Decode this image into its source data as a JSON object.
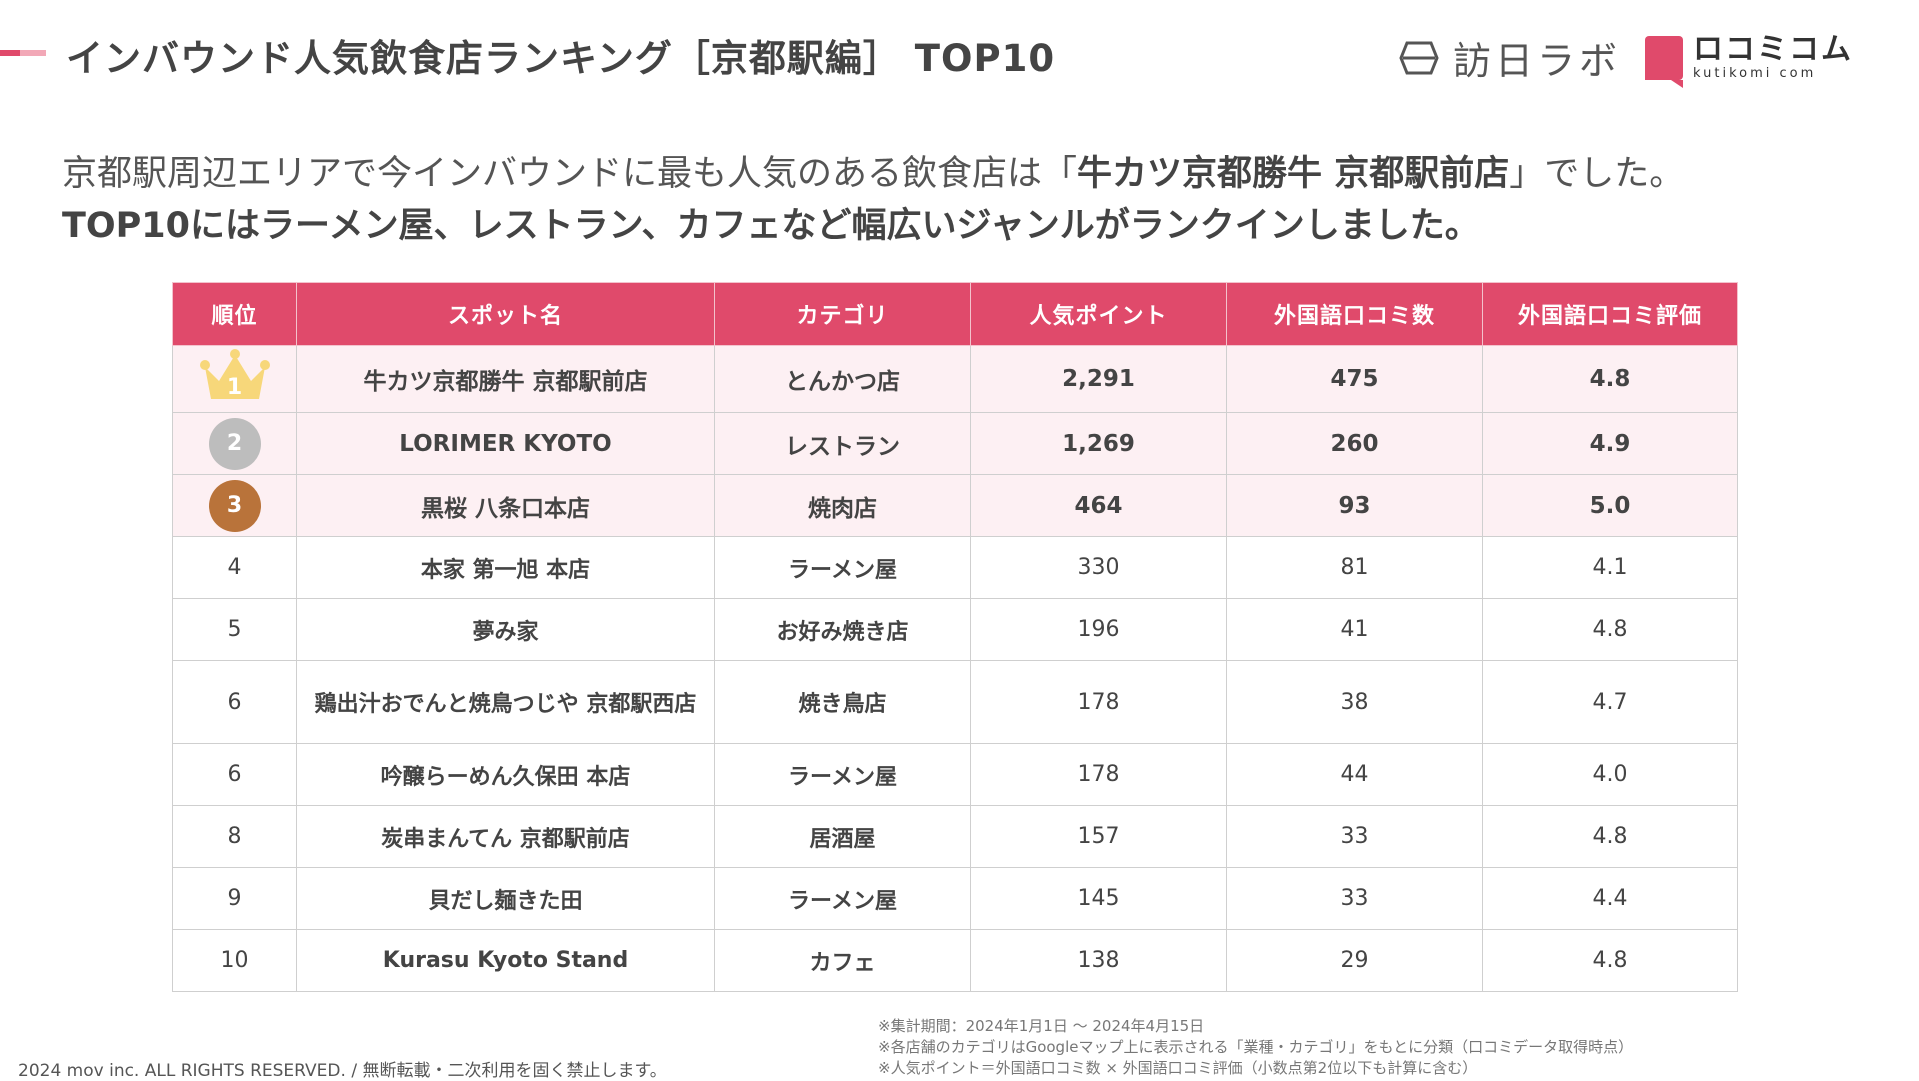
{
  "header": {
    "title": "インバウンド人気飲食店ランキング［京都駅編］ TOP10",
    "logo1_text": "訪日ラボ",
    "logo2_text": "ロコミコム",
    "logo2_sub": "kutikomi com"
  },
  "lead": {
    "line1_prefix": "京都駅周辺エリアで今インバウンドに最も人気のある飲食店は「",
    "line1_bold": "牛カツ京都勝牛 京都駅前店",
    "line1_suffix": "」でした。",
    "line2": "TOP10にはラーメン屋、レストラン、カフェなど幅広いジャンルがランクインしました。"
  },
  "table": {
    "headers": [
      "順位",
      "スポット名",
      "カテゴリ",
      "人気ポイント",
      "外国語口コミ数",
      "外国語口コミ評価"
    ],
    "rows": [
      {
        "rank": "1",
        "name": "牛カツ京都勝牛 京都駅前店",
        "category": "とんかつ店",
        "points": "2,291",
        "reviews": "475",
        "rating": "4.8"
      },
      {
        "rank": "2",
        "name": "LORIMER KYOTO",
        "category": "レストラン",
        "points": "1,269",
        "reviews": "260",
        "rating": "4.9"
      },
      {
        "rank": "3",
        "name": "黒桜 八条口本店",
        "category": "焼肉店",
        "points": "464",
        "reviews": "93",
        "rating": "5.0"
      },
      {
        "rank": "4",
        "name": "本家 第一旭 本店",
        "category": "ラーメン屋",
        "points": "330",
        "reviews": "81",
        "rating": "4.1"
      },
      {
        "rank": "5",
        "name": "夢み家",
        "category": "お好み焼き店",
        "points": "196",
        "reviews": "41",
        "rating": "4.8"
      },
      {
        "rank": "6",
        "name": "鶏出汁おでんと焼鳥つじや 京都駅西店",
        "category": "焼き鳥店",
        "points": "178",
        "reviews": "38",
        "rating": "4.7"
      },
      {
        "rank": "6",
        "name": "吟醸らーめん久保田 本店",
        "category": "ラーメン屋",
        "points": "178",
        "reviews": "44",
        "rating": "4.0"
      },
      {
        "rank": "8",
        "name": "炭串まんてん 京都駅前店",
        "category": "居酒屋",
        "points": "157",
        "reviews": "33",
        "rating": "4.8"
      },
      {
        "rank": "9",
        "name": "貝だし麺きた田",
        "category": "ラーメン屋",
        "points": "145",
        "reviews": "33",
        "rating": "4.4"
      },
      {
        "rank": "10",
        "name": "Kurasu Kyoto Stand",
        "category": "カフェ",
        "points": "138",
        "reviews": "29",
        "rating": "4.8"
      }
    ]
  },
  "footer": {
    "copyright": "2024 mov inc. ALL RIGHTS RESERVED. / 無断転載・二次利用を固く禁止します。",
    "note1": "※集計期間：2024年1月1日 〜 2024年4月15日",
    "note2": "※各店舗のカテゴリはGoogleマップ上に表示される「業種・カテゴリ」をもとに分類（口コミデータ取得時点）",
    "note3": "※人気ポイント＝外国語口コミ数 × 外国語口コミ評価（小数点第2位以下も計算に含む）"
  },
  "colors": {
    "accent": "#e04a6b",
    "gold": "#f7d77a",
    "silver": "#bdbdbd",
    "bronze": "#b9733a"
  }
}
